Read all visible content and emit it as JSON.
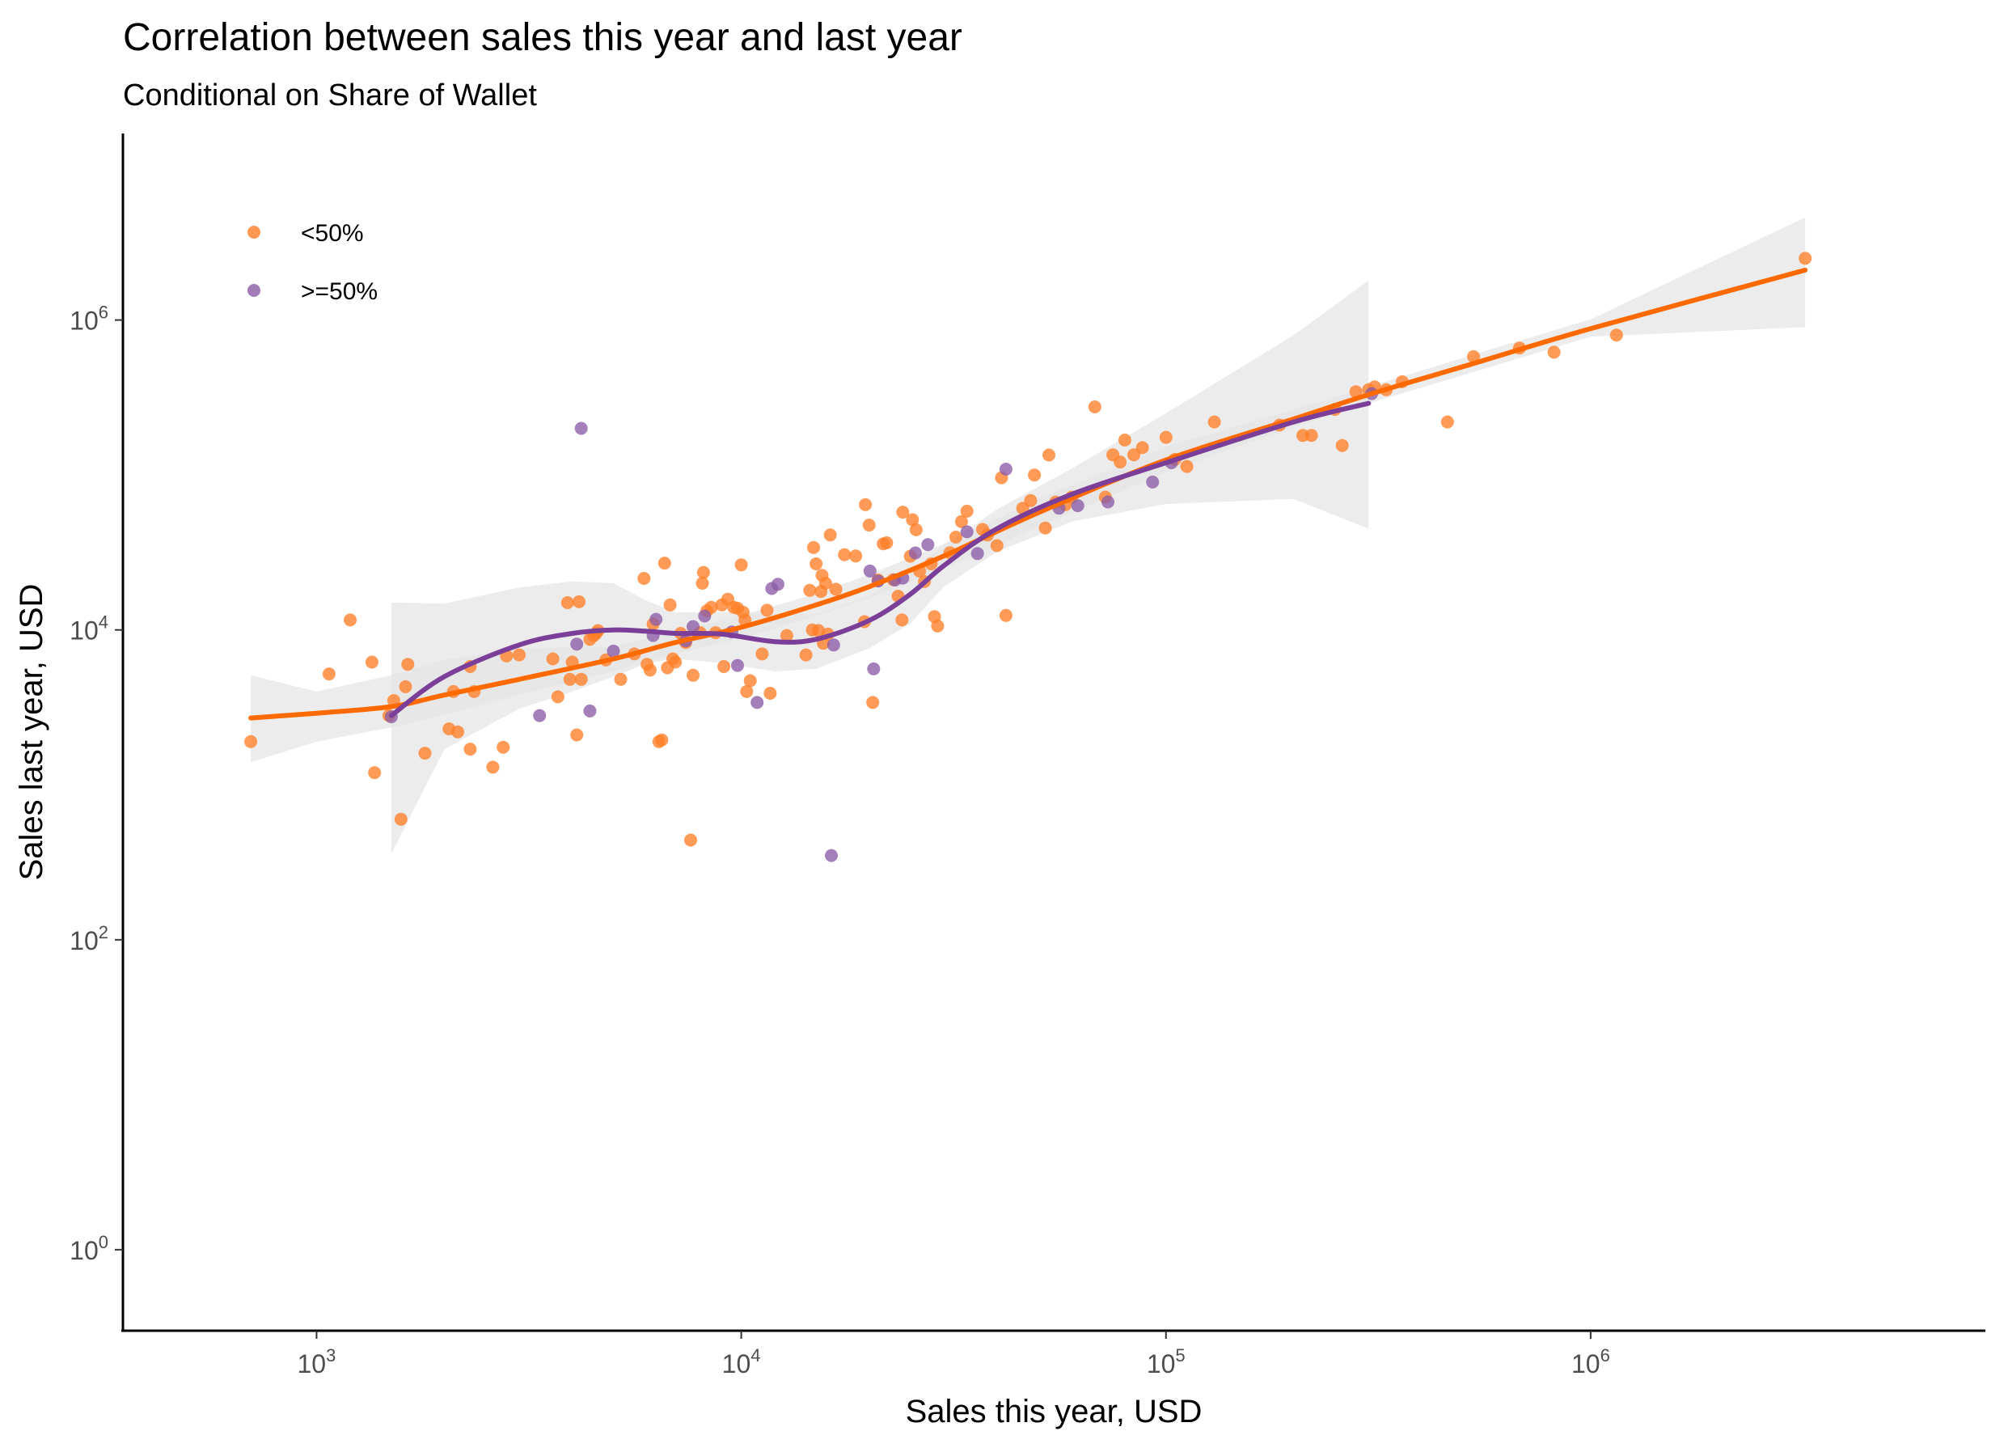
{
  "chart_data": {
    "type": "scatter",
    "title": "Correlation between sales this year and last year",
    "subtitle": "Conditional on Share of Wallet",
    "xlabel": "Sales this year, USD",
    "ylabel": "Sales last year, USD",
    "x_scale": "log10",
    "y_scale": "log10",
    "xlim": [
      350,
      8500000
    ],
    "ylim": [
      0.3,
      16000000
    ],
    "x_ticks": [
      {
        "value": 1000,
        "base": "10",
        "exp": "3"
      },
      {
        "value": 10000,
        "base": "10",
        "exp": "4"
      },
      {
        "value": 100000,
        "base": "10",
        "exp": "5"
      },
      {
        "value": 1000000,
        "base": "10",
        "exp": "6"
      }
    ],
    "y_ticks": [
      {
        "value": 1,
        "base": "10",
        "exp": "0"
      },
      {
        "value": 100,
        "base": "10",
        "exp": "2"
      },
      {
        "value": 10000,
        "base": "10",
        "exp": "4"
      },
      {
        "value": 1000000,
        "base": "10",
        "exp": "6"
      }
    ],
    "grid": false,
    "legend_position": "top-left inside",
    "colors": {
      "under50": "#ff7f27",
      "over50": "#8a5ba7",
      "under50_line": "#ff6a00",
      "over50_line": "#7b3f99",
      "band": "#e6e6e6"
    },
    "series": [
      {
        "name": "<50%",
        "color": "#ff7f27",
        "points": [
          [
            700,
            1900
          ],
          [
            1070,
            5200
          ],
          [
            1200,
            11600
          ],
          [
            1350,
            6200
          ],
          [
            1370,
            1200
          ],
          [
            1480,
            2800
          ],
          [
            1520,
            3500
          ],
          [
            1580,
            600
          ],
          [
            1620,
            4300
          ],
          [
            1640,
            6000
          ],
          [
            1800,
            1600
          ],
          [
            2050,
            2300
          ],
          [
            2100,
            4000
          ],
          [
            2150,
            2200
          ],
          [
            2300,
            5800
          ],
          [
            2350,
            4000
          ],
          [
            2300,
            1700
          ],
          [
            2600,
            1300
          ],
          [
            2750,
            1750
          ],
          [
            2800,
            6800
          ],
          [
            3000,
            6900
          ],
          [
            3600,
            6500
          ],
          [
            3700,
            3700
          ],
          [
            3900,
            15000
          ],
          [
            3950,
            4800
          ],
          [
            4000,
            6200
          ],
          [
            4100,
            2100
          ],
          [
            4150,
            15200
          ],
          [
            4200,
            4800
          ],
          [
            4400,
            8700
          ],
          [
            4500,
            9200
          ],
          [
            4550,
            9500
          ],
          [
            4600,
            9900
          ],
          [
            4800,
            6400
          ],
          [
            5200,
            4800
          ],
          [
            5600,
            7000
          ],
          [
            5900,
            21500
          ],
          [
            6000,
            6000
          ],
          [
            6100,
            5500
          ],
          [
            6200,
            10900
          ],
          [
            6400,
            1900
          ],
          [
            6500,
            1950
          ],
          [
            6600,
            27000
          ],
          [
            6700,
            5700
          ],
          [
            6800,
            14500
          ],
          [
            6900,
            6500
          ],
          [
            7000,
            6200
          ],
          [
            7200,
            9500
          ],
          [
            7400,
            8300
          ],
          [
            7600,
            440
          ],
          [
            7700,
            5100
          ],
          [
            8000,
            9600
          ],
          [
            8100,
            20000
          ],
          [
            8150,
            23500
          ],
          [
            8300,
            13300
          ],
          [
            8500,
            14000
          ],
          [
            8700,
            9600
          ],
          [
            9000,
            14500
          ],
          [
            9100,
            5800
          ],
          [
            9300,
            15800
          ],
          [
            9600,
            14000
          ],
          [
            9800,
            13800
          ],
          [
            10000,
            26300
          ],
          [
            10100,
            13000
          ],
          [
            10200,
            11600
          ],
          [
            10300,
            4000
          ],
          [
            10500,
            4700
          ],
          [
            11200,
            7000
          ],
          [
            11500,
            13400
          ],
          [
            11700,
            3900
          ],
          [
            12800,
            9200
          ],
          [
            14200,
            6900
          ],
          [
            14500,
            18000
          ],
          [
            14700,
            10000
          ],
          [
            14800,
            34000
          ],
          [
            15000,
            26700
          ],
          [
            15200,
            9900
          ],
          [
            15400,
            17700
          ],
          [
            15500,
            22500
          ],
          [
            15600,
            8200
          ],
          [
            15800,
            20000
          ],
          [
            16000,
            9400
          ],
          [
            16200,
            41000
          ],
          [
            16700,
            18300
          ],
          [
            17500,
            30600
          ],
          [
            18600,
            30000
          ],
          [
            19500,
            11300
          ],
          [
            19600,
            64300
          ],
          [
            20000,
            47500
          ],
          [
            20400,
            3400
          ],
          [
            21000,
            21000
          ],
          [
            21600,
            36000
          ],
          [
            22000,
            36500
          ],
          [
            22800,
            21100
          ],
          [
            23400,
            16500
          ],
          [
            23900,
            11600
          ],
          [
            24000,
            57600
          ],
          [
            25000,
            29900
          ],
          [
            25300,
            51400
          ],
          [
            25800,
            44300
          ],
          [
            26300,
            24000
          ],
          [
            27000,
            20500
          ],
          [
            28000,
            26700
          ],
          [
            28500,
            12200
          ],
          [
            29000,
            10600
          ],
          [
            31000,
            31500
          ],
          [
            32000,
            39700
          ],
          [
            33000,
            50000
          ],
          [
            34000,
            58400
          ],
          [
            37000,
            44500
          ],
          [
            38000,
            41000
          ],
          [
            40000,
            35000
          ],
          [
            41000,
            96000
          ],
          [
            42000,
            12400
          ],
          [
            46000,
            61000
          ],
          [
            48000,
            68400
          ],
          [
            49000,
            100000
          ],
          [
            52000,
            45500
          ],
          [
            53000,
            134500
          ],
          [
            55000,
            66900
          ],
          [
            58000,
            64300
          ],
          [
            60000,
            72000
          ],
          [
            68000,
            275000
          ],
          [
            72000,
            72000
          ],
          [
            75000,
            135000
          ],
          [
            78000,
            121300
          ],
          [
            80000,
            168000
          ],
          [
            84000,
            135000
          ],
          [
            88000,
            150000
          ],
          [
            100000,
            175000
          ],
          [
            105000,
            126000
          ],
          [
            112000,
            113500
          ],
          [
            130000,
            220000
          ],
          [
            185000,
            210000
          ],
          [
            210000,
            180000
          ],
          [
            220000,
            180000
          ],
          [
            250000,
            265000
          ],
          [
            260000,
            155000
          ],
          [
            280000,
            345000
          ],
          [
            300000,
            355000
          ],
          [
            310000,
            370000
          ],
          [
            330000,
            355000
          ],
          [
            360000,
            400000
          ],
          [
            460000,
            220000
          ],
          [
            530000,
            580000
          ],
          [
            680000,
            660000
          ],
          [
            820000,
            620000
          ],
          [
            1150000,
            800000
          ],
          [
            3200000,
            2500000
          ]
        ]
      },
      {
        "name": ">=50%",
        "color": "#8a5ba7",
        "points": [
          [
            1500,
            2750
          ],
          [
            3350,
            2800
          ],
          [
            4100,
            8100
          ],
          [
            4200,
            200000
          ],
          [
            4400,
            3000
          ],
          [
            5000,
            7300
          ],
          [
            6200,
            9200
          ],
          [
            6300,
            11700
          ],
          [
            7400,
            8500
          ],
          [
            7700,
            10500
          ],
          [
            8200,
            12300
          ],
          [
            9500,
            9700
          ],
          [
            9800,
            5900
          ],
          [
            10900,
            3400
          ],
          [
            11800,
            18500
          ],
          [
            12200,
            19700
          ],
          [
            16300,
            350
          ],
          [
            16500,
            8000
          ],
          [
            20100,
            24000
          ],
          [
            20500,
            5600
          ],
          [
            21000,
            20700
          ],
          [
            23000,
            21000
          ],
          [
            24000,
            21600
          ],
          [
            25700,
            31400
          ],
          [
            27500,
            35500
          ],
          [
            34000,
            43000
          ],
          [
            36000,
            31100
          ],
          [
            42000,
            109000
          ],
          [
            56000,
            61000
          ],
          [
            62000,
            63400
          ],
          [
            73000,
            67000
          ],
          [
            93000,
            90000
          ],
          [
            103000,
            120000
          ],
          [
            305000,
            335000
          ]
        ]
      }
    ],
    "smooth_lines": [
      {
        "series": "<50%",
        "points": [
          [
            700,
            2700
          ],
          [
            1000,
            2900
          ],
          [
            1500,
            3200
          ],
          [
            2000,
            3800
          ],
          [
            3000,
            4800
          ],
          [
            5000,
            6500
          ],
          [
            7000,
            8300
          ],
          [
            10000,
            10400
          ],
          [
            15000,
            14500
          ],
          [
            20000,
            19000
          ],
          [
            30000,
            30000
          ],
          [
            50000,
            57000
          ],
          [
            100000,
            125000
          ],
          [
            200000,
            230000
          ],
          [
            300000,
            330000
          ],
          [
            500000,
            500000
          ],
          [
            1000000,
            880000
          ],
          [
            3200000,
            2100000
          ]
        ]
      },
      {
        "series": ">=50%",
        "points": [
          [
            1500,
            2800
          ],
          [
            2000,
            5000
          ],
          [
            3000,
            8000
          ],
          [
            4000,
            9500
          ],
          [
            5000,
            10000
          ],
          [
            6000,
            9800
          ],
          [
            7000,
            9500
          ],
          [
            9000,
            9400
          ],
          [
            12000,
            8400
          ],
          [
            15000,
            8700
          ],
          [
            20000,
            11500
          ],
          [
            25000,
            17000
          ],
          [
            30000,
            26000
          ],
          [
            40000,
            45000
          ],
          [
            60000,
            75000
          ],
          [
            100000,
            120000
          ],
          [
            200000,
            220000
          ],
          [
            300000,
            290000
          ]
        ]
      }
    ],
    "bands": [
      {
        "series": "<50%",
        "upper": [
          [
            700,
            5100
          ],
          [
            1000,
            4000
          ],
          [
            1500,
            5100
          ],
          [
            2000,
            6400
          ],
          [
            3000,
            7600
          ],
          [
            5000,
            7800
          ],
          [
            7000,
            9700
          ],
          [
            10000,
            12400
          ],
          [
            15000,
            17100
          ],
          [
            20000,
            22800
          ],
          [
            30000,
            36000
          ],
          [
            50000,
            70000
          ],
          [
            100000,
            152000
          ],
          [
            200000,
            264000
          ],
          [
            300000,
            370000
          ],
          [
            500000,
            570000
          ],
          [
            1000000,
            1010000
          ],
          [
            3200000,
            4600000
          ]
        ],
        "lower": [
          [
            3200000,
            900000
          ],
          [
            1000000,
            780000
          ],
          [
            500000,
            440000
          ],
          [
            300000,
            290000
          ],
          [
            200000,
            205000
          ],
          [
            100000,
            104000
          ],
          [
            50000,
            46000
          ],
          [
            30000,
            25000
          ],
          [
            20000,
            16000
          ],
          [
            15000,
            12300
          ],
          [
            10000,
            8800
          ],
          [
            7000,
            7000
          ],
          [
            5000,
            5400
          ],
          [
            3000,
            3800
          ],
          [
            2000,
            2850
          ],
          [
            1500,
            2350
          ],
          [
            1000,
            1900
          ],
          [
            700,
            1400
          ]
        ]
      },
      {
        "series": ">=50%",
        "upper": [
          [
            1500,
            15000
          ],
          [
            2000,
            14800
          ],
          [
            3000,
            18800
          ],
          [
            4000,
            20600
          ],
          [
            5000,
            20000
          ],
          [
            6000,
            15400
          ],
          [
            7000,
            13000
          ],
          [
            9000,
            13000
          ],
          [
            12000,
            12800
          ],
          [
            15000,
            12700
          ],
          [
            20000,
            16600
          ],
          [
            25000,
            24300
          ],
          [
            30000,
            35000
          ],
          [
            40000,
            60000
          ],
          [
            60000,
            110000
          ],
          [
            100000,
            250000
          ],
          [
            200000,
            800000
          ],
          [
            300000,
            1800000
          ]
        ],
        "lower": [
          [
            300000,
            45000
          ],
          [
            200000,
            70000
          ],
          [
            100000,
            65000
          ],
          [
            60000,
            50000
          ],
          [
            40000,
            32000
          ],
          [
            30000,
            19000
          ],
          [
            25000,
            11000
          ],
          [
            20000,
            7600
          ],
          [
            15000,
            5600
          ],
          [
            12000,
            5400
          ],
          [
            9000,
            6100
          ],
          [
            7000,
            6500
          ],
          [
            6000,
            6100
          ],
          [
            5000,
            5000
          ],
          [
            4000,
            4000
          ],
          [
            3000,
            3100
          ],
          [
            2000,
            1700
          ],
          [
            1500,
            360
          ]
        ]
      }
    ]
  }
}
